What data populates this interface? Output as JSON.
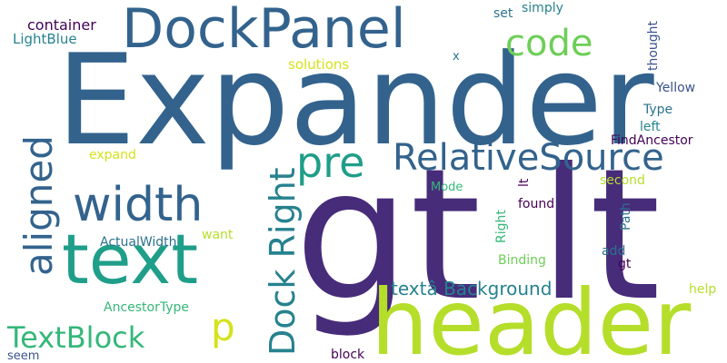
{
  "colors": {
    "background": "#ffffff",
    "dark_purple": "#440154",
    "indigo": "#472c7a",
    "slate_blue": "#3b528b",
    "steel_blue": "#33638d",
    "blue": "#2c728e",
    "teal_blue": "#26828e",
    "teal": "#1f9e89",
    "green": "#35b779",
    "light_green": "#6ece58",
    "lime": "#b5de2b",
    "yellow": "#d6e21a"
  },
  "words": [
    "Expander",
    "gt lt",
    "header",
    "text",
    "DockPanel",
    "width",
    "RelativeSource",
    "code",
    "pre",
    "aligned",
    "TextBlock",
    "Dock Right",
    "p",
    "textâ Background",
    "container",
    "LightBlue",
    "set",
    "simply",
    "thought",
    "solutions",
    "x",
    "Yellow",
    "Type",
    "left",
    "FindAncestor",
    "expand",
    "second",
    "lt",
    "Mode",
    "found",
    "Path",
    "Right",
    "want",
    "ActualWidth",
    "Binding",
    "add",
    "gt",
    "AncestorType",
    "help",
    "seem",
    "block"
  ]
}
